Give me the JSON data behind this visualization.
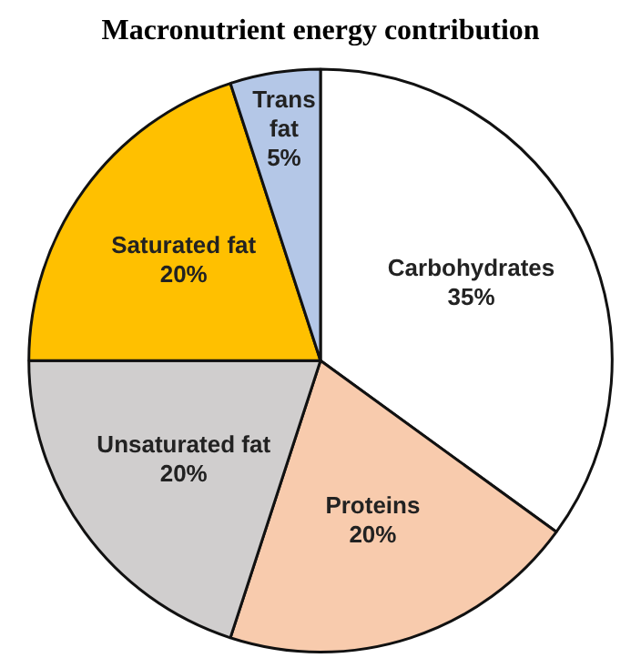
{
  "chart_data": {
    "type": "pie",
    "title": "Macronutrient energy contribution",
    "categories": [
      "Carbohydrates",
      "Proteins",
      "Unsaturated fat",
      "Saturated fat",
      "Trans fat"
    ],
    "values": [
      35,
      20,
      20,
      20,
      5
    ],
    "colors": [
      "#ffffff",
      "#f8cbad",
      "#d0cece",
      "#ffc000",
      "#b4c7e7"
    ],
    "value_labels": [
      "35%",
      "20%",
      "20%",
      "20%",
      "5%"
    ],
    "legend": false
  }
}
